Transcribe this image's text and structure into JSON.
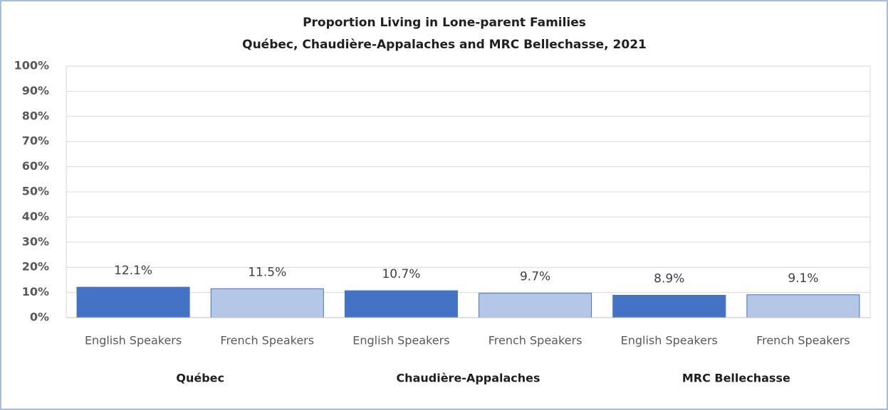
{
  "chart_data": {
    "type": "bar",
    "title": "Proportion Living in Lone-parent Families",
    "subtitle": "Québec, Chaudière-Appalaches and MRC Bellechasse, 2021",
    "groups": [
      {
        "name": "Québec",
        "categories": [
          "English Speakers",
          "French Speakers"
        ],
        "values": [
          12.1,
          11.5
        ],
        "value_labels": [
          "12.1%",
          "11.5%"
        ]
      },
      {
        "name": "Chaudière-Appalaches",
        "categories": [
          "English Speakers",
          "French Speakers"
        ],
        "values": [
          10.7,
          9.7
        ],
        "value_labels": [
          "10.7%",
          "9.7%"
        ]
      },
      {
        "name": "MRC Bellechasse",
        "categories": [
          "English Speakers",
          "French Speakers"
        ],
        "values": [
          8.9,
          9.1
        ],
        "value_labels": [
          "8.9%",
          "9.1%"
        ]
      }
    ],
    "colors": [
      "#4472c4",
      "#b4c7e7"
    ],
    "outline": "#4472c4",
    "ylim": [
      0,
      100
    ],
    "yticks": [
      {
        "value": 0,
        "label": "0%"
      },
      {
        "value": 10,
        "label": "10%"
      },
      {
        "value": 20,
        "label": "20%"
      },
      {
        "value": 30,
        "label": "30%"
      },
      {
        "value": 40,
        "label": "40%"
      },
      {
        "value": 50,
        "label": "50%"
      },
      {
        "value": 60,
        "label": "60%"
      },
      {
        "value": 70,
        "label": "70%"
      },
      {
        "value": 80,
        "label": "80%"
      },
      {
        "value": 90,
        "label": "90%"
      },
      {
        "value": 100,
        "label": "100%"
      }
    ],
    "grid": true
  }
}
